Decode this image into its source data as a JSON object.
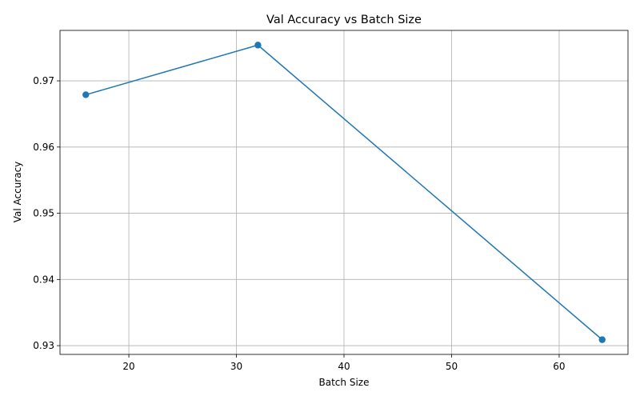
{
  "chart_data": {
    "type": "line",
    "title": "Val Accuracy vs Batch Size",
    "xlabel": "Batch Size",
    "ylabel": "Val Accuracy",
    "x": [
      16,
      32,
      64
    ],
    "series": [
      {
        "values": [
          0.9679,
          0.9754,
          0.9309
        ],
        "color": "#1f77b4",
        "marker": "circle"
      }
    ],
    "xlim": [
      13.6,
      66.4
    ],
    "ylim": [
      0.92868,
      0.97762
    ],
    "xticks": [
      20,
      30,
      40,
      50,
      60
    ],
    "yticks": [
      0.93,
      0.94,
      0.95,
      0.96,
      0.97
    ],
    "xtick_labels": [
      "20",
      "30",
      "40",
      "50",
      "60"
    ],
    "ytick_labels": [
      "0.93",
      "0.94",
      "0.95",
      "0.96",
      "0.97"
    ],
    "grid": true,
    "grid_color": "#b0b0b0",
    "axis_color": "#000000"
  }
}
